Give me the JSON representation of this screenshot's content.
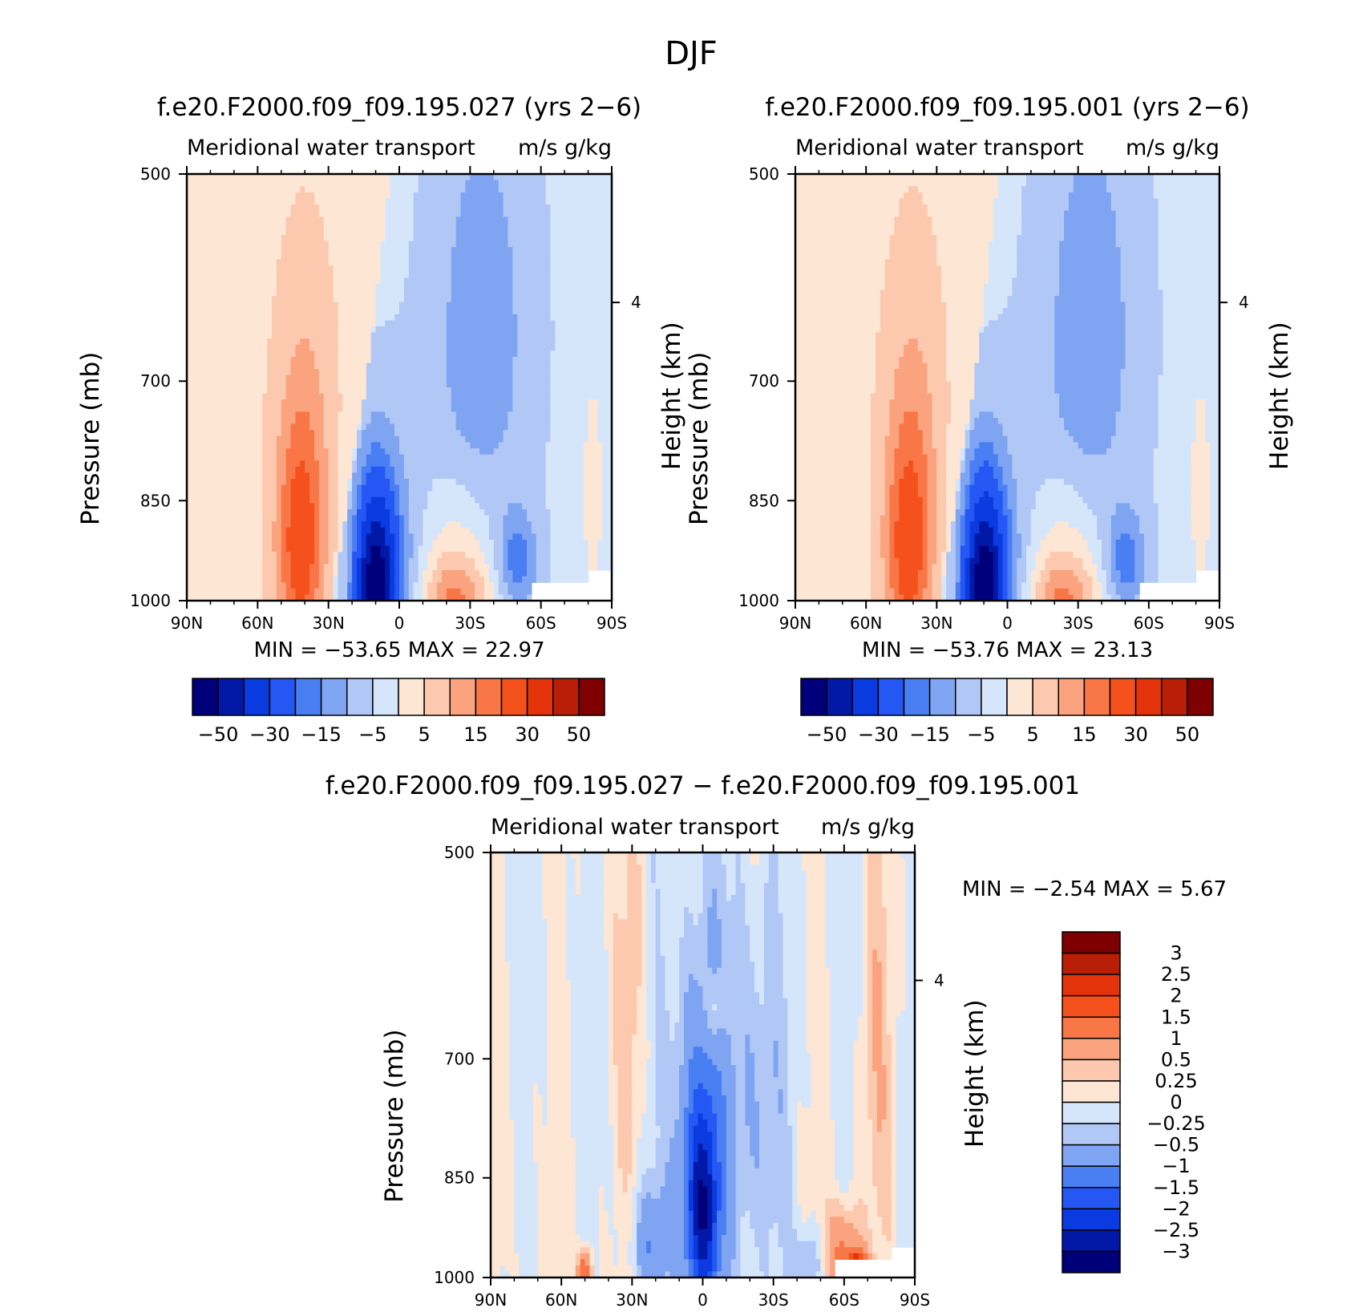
{
  "figure": {
    "title": "DJF"
  },
  "chart_data": [
    {
      "type": "heatmap",
      "title": "f.e20.F2000.f09_f09.195.027 (yrs 2−6)",
      "subtitle_left": "Meridional water transport",
      "subtitle_right": "m/s g/kg",
      "xlabel": "",
      "ylabel": "Pressure (mb)",
      "y2label": "Height (km)",
      "x_ticks": [
        "90N",
        "60N",
        "30N",
        "0",
        "30S",
        "60S",
        "90S"
      ],
      "y_ticks": [
        "500",
        "700",
        "850",
        "1000"
      ],
      "y2_ticks": [
        "4"
      ],
      "xlim": [
        90,
        -90
      ],
      "ylim": [
        1000,
        500
      ],
      "stats": "MIN = −53.65   MAX =   22.97",
      "min": -53.65,
      "max": 22.97,
      "colorbar_labels": [
        "−50",
        "−30",
        "−15",
        "−5",
        "5",
        "15",
        "30",
        "50"
      ],
      "levels": [
        -50,
        -40,
        -30,
        -20,
        -15,
        -10,
        -5,
        0,
        5,
        10,
        15,
        20,
        30,
        40,
        50
      ]
    },
    {
      "type": "heatmap",
      "title": "f.e20.F2000.f09_f09.195.001 (yrs 2−6)",
      "subtitle_left": "Meridional water transport",
      "subtitle_right": "m/s g/kg",
      "xlabel": "",
      "ylabel": "Pressure (mb)",
      "y2label": "Height (km)",
      "x_ticks": [
        "90N",
        "60N",
        "30N",
        "0",
        "30S",
        "60S",
        "90S"
      ],
      "y_ticks": [
        "500",
        "700",
        "850",
        "1000"
      ],
      "y2_ticks": [
        "4"
      ],
      "xlim": [
        90,
        -90
      ],
      "ylim": [
        1000,
        500
      ],
      "stats": "MIN = −53.76   MAX =   23.13",
      "min": -53.76,
      "max": 23.13,
      "colorbar_labels": [
        "−50",
        "−30",
        "−15",
        "−5",
        "5",
        "15",
        "30",
        "50"
      ],
      "levels": [
        -50,
        -40,
        -30,
        -20,
        -15,
        -10,
        -5,
        0,
        5,
        10,
        15,
        20,
        30,
        40,
        50
      ]
    },
    {
      "type": "heatmap",
      "title": "f.e20.F2000.f09_f09.195.027 − f.e20.F2000.f09_f09.195.001",
      "subtitle_left": "Meridional water transport",
      "subtitle_right": "m/s g/kg",
      "xlabel": "",
      "ylabel": "Pressure (mb)",
      "y2label": "Height (km)",
      "x_ticks": [
        "90N",
        "60N",
        "30N",
        "0",
        "30S",
        "60S",
        "90S"
      ],
      "y_ticks": [
        "500",
        "700",
        "850",
        "1000"
      ],
      "y2_ticks": [
        "4"
      ],
      "xlim": [
        90,
        -90
      ],
      "ylim": [
        1000,
        500
      ],
      "stats": "MIN =    −2.54   MAX =    5.67",
      "min": -2.54,
      "max": 5.67,
      "colorbar_labels": [
        "3",
        "2.5",
        "2",
        "1.5",
        "1",
        "0.5",
        "0.25",
        "0",
        "−0.25",
        "−0.5",
        "−1",
        "−1.5",
        "−2",
        "−2.5",
        "−3"
      ],
      "levels": [
        -3,
        -2.5,
        -2,
        -1.5,
        -1,
        -0.5,
        -0.25,
        0,
        0.25,
        0.5,
        1,
        1.5,
        2,
        2.5,
        3
      ]
    }
  ],
  "palette": {
    "colors": [
      "#00007a",
      "#0219a8",
      "#0a3be0",
      "#2457f4",
      "#4a7ff4",
      "#7ea4f2",
      "#b1c8f7",
      "#d5e6fb",
      "#fde6d4",
      "#fcc9ae",
      "#fba37e",
      "#f97647",
      "#f5511c",
      "#e3330a",
      "#b91f06",
      "#7f0000"
    ]
  }
}
